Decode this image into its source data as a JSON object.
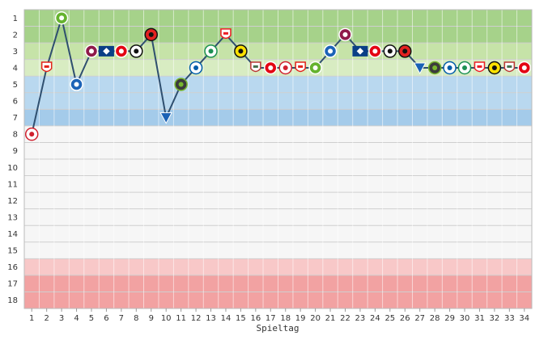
{
  "chart_data": {
    "type": "line",
    "xlabel": "Spieltag",
    "ylabel": "",
    "x": [
      1,
      2,
      3,
      4,
      5,
      6,
      7,
      8,
      9,
      10,
      11,
      12,
      13,
      14,
      15,
      16,
      17,
      18,
      19,
      20,
      21,
      22,
      23,
      24,
      25,
      26,
      27,
      28,
      29,
      30,
      31,
      32,
      33,
      34
    ],
    "xlim": [
      1,
      34
    ],
    "ylim": [
      1,
      18
    ],
    "y_reversed": true,
    "y_ticks": [
      1,
      2,
      3,
      4,
      5,
      6,
      7,
      8,
      9,
      10,
      11,
      12,
      13,
      14,
      15,
      16,
      17,
      18
    ],
    "series": [
      {
        "values": [
          8,
          4,
          1,
          5,
          3,
          3,
          3,
          3,
          2,
          7,
          5,
          4,
          3,
          2,
          3,
          4,
          4,
          4,
          4,
          4,
          3,
          2,
          3,
          3,
          3,
          3,
          4,
          4,
          4,
          4,
          4,
          4,
          4,
          4
        ],
        "color": "#2f4f6f"
      }
    ],
    "point_icons": [
      "bayern",
      "stuttgart",
      "wolfsburg",
      "schalke",
      "fc-koeln",
      "hamburg",
      "mainz",
      "freiburg",
      "leverkusen",
      "hoffenheim",
      "hannover",
      "hertha",
      "bremen",
      "koeln",
      "dortmund",
      "augsburg",
      "mainz",
      "bayern",
      "stuttgart",
      "wolfsburg",
      "schalke",
      "fc-koeln",
      "hamburg",
      "mainz",
      "freiburg",
      "leverkusen",
      "hoffenheim",
      "hannover",
      "hertha",
      "bremen",
      "koeln",
      "dortmund",
      "augsburg",
      "mainz"
    ],
    "bands": [
      {
        "from": 1,
        "to": 3,
        "color": "#a6d28a"
      },
      {
        "from": 3,
        "to": 4,
        "color": "#c6e3a8"
      },
      {
        "from": 4,
        "to": 5,
        "color": "#d8ecc2"
      },
      {
        "from": 5,
        "to": 7,
        "color": "#b9d8ef"
      },
      {
        "from": 7,
        "to": 8,
        "color": "#a4cbea"
      },
      {
        "from": 8,
        "to": 16,
        "color": "#f6f6f6"
      },
      {
        "from": 16,
        "to": 17,
        "color": "#f8c8c8"
      },
      {
        "from": 17,
        "to": 19,
        "color": "#f2a2a2"
      }
    ],
    "grid": true
  }
}
